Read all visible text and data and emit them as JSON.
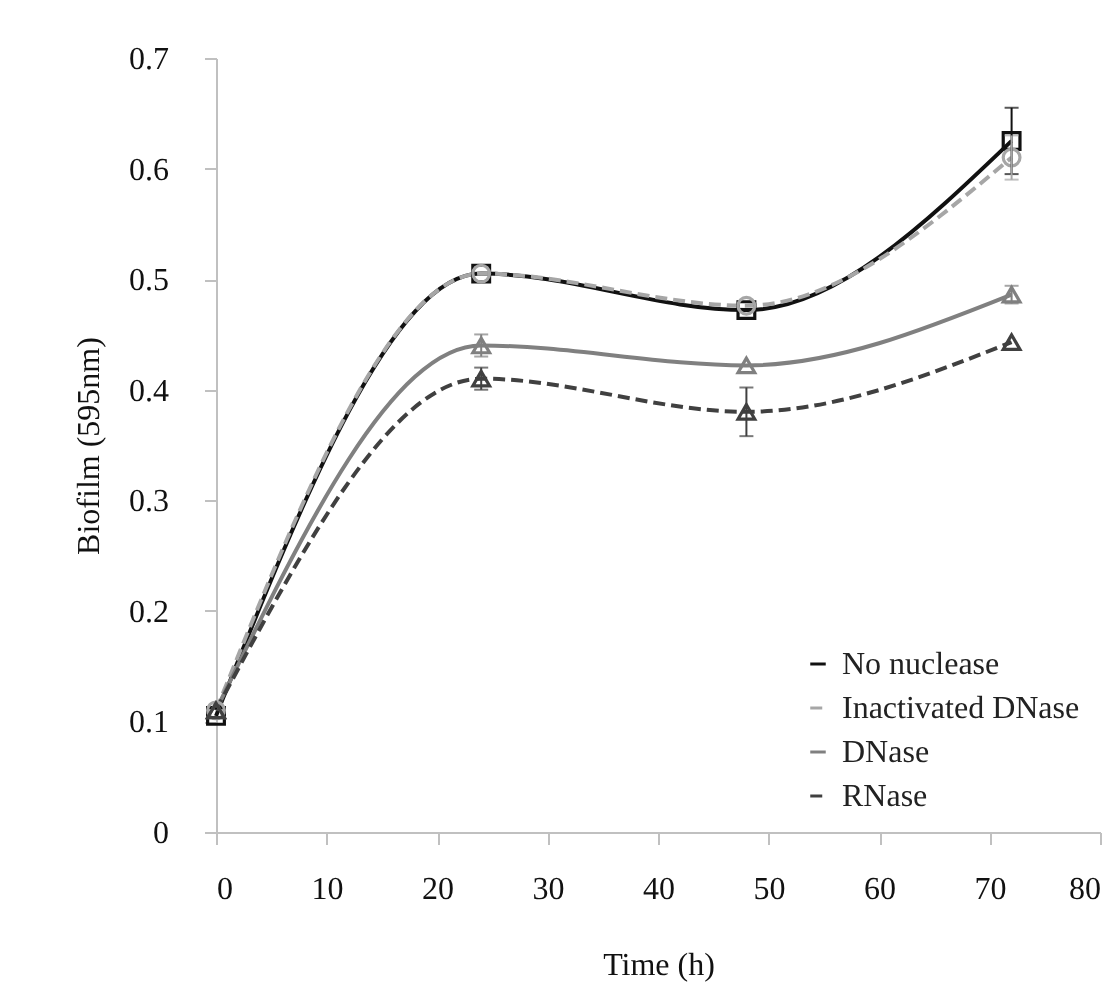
{
  "chart_data": {
    "type": "line",
    "xlabel": "Time (h)",
    "ylabel": "Biofilm (595nm)",
    "x": [
      0,
      24,
      48,
      72
    ],
    "series": [
      {
        "name": "No nuclease",
        "color": "#111111",
        "marker": "square",
        "line_style": "solid",
        "values": [
          0.105,
          0.505,
          0.472,
          0.625
        ],
        "errors": [
          null,
          null,
          null,
          0.03
        ]
      },
      {
        "name": "Inactivated DNase",
        "color": "#a6a6a6",
        "marker": "circle",
        "line_style": "dashed",
        "values": [
          0.11,
          0.505,
          0.476,
          0.61
        ],
        "errors": [
          null,
          null,
          null,
          0.02
        ]
      },
      {
        "name": "DNase",
        "color": "#808080",
        "marker": "triangle",
        "line_style": "solid",
        "values": [
          0.11,
          0.44,
          0.422,
          0.486
        ],
        "errors": [
          null,
          0.01,
          null,
          0.008
        ]
      },
      {
        "name": "RNase",
        "color": "#404040",
        "marker": "triangle",
        "line_style": "dashed",
        "values": [
          0.11,
          0.41,
          0.38,
          0.443
        ],
        "errors": [
          null,
          0.01,
          0.022,
          null
        ]
      }
    ],
    "xlim": [
      0,
      80
    ],
    "xticks": [
      0,
      10,
      20,
      30,
      40,
      50,
      60,
      70,
      80
    ],
    "ylim": [
      0,
      0.7
    ],
    "yticks": [
      0,
      0.1,
      0.2,
      0.3,
      0.4,
      0.5,
      0.6,
      0.7
    ],
    "grid": false,
    "legend": "bottom right"
  }
}
